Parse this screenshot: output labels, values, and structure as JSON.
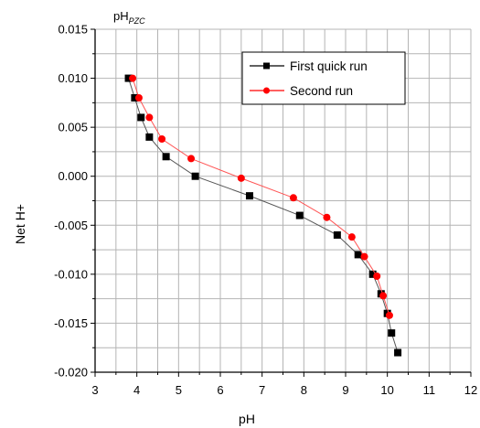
{
  "chart_data": {
    "type": "scatter",
    "xlabel": "pH",
    "ylabel": "Net H+",
    "xlim": [
      3,
      12
    ],
    "ylim": [
      -0.02,
      0.015
    ],
    "x_ticks": [
      "3",
      "4",
      "5",
      "6",
      "7",
      "8",
      "9",
      "10",
      "11",
      "12"
    ],
    "y_ticks": [
      "0.015",
      "0.010",
      "0.005",
      "0.000",
      "-0.005",
      "-0.010",
      "-0.015",
      "-0.020"
    ],
    "x_tick_values": [
      3,
      4,
      5,
      6,
      7,
      8,
      9,
      10,
      11,
      12
    ],
    "y_tick_values": [
      0.015,
      0.01,
      0.005,
      0.0,
      -0.005,
      -0.01,
      -0.015,
      -0.02
    ],
    "grid": true,
    "legend_position": "top-right",
    "annotation": {
      "main": "pH",
      "sub": "PZC"
    },
    "series": [
      {
        "name": "First quick run",
        "color": "#000000",
        "line_color": "#555555",
        "marker": "square",
        "x": [
          3.8,
          3.95,
          4.1,
          4.3,
          4.7,
          5.4,
          6.7,
          7.9,
          8.8,
          9.3,
          9.65,
          9.85,
          10.0,
          10.1,
          10.25
        ],
        "y": [
          0.01,
          0.008,
          0.006,
          0.004,
          0.002,
          0.0,
          -0.002,
          -0.004,
          -0.006,
          -0.008,
          -0.01,
          -0.012,
          -0.014,
          -0.016,
          -0.018
        ]
      },
      {
        "name": "Second run",
        "color": "#ff0000",
        "line_color": "#ff5555",
        "marker": "circle",
        "x": [
          3.9,
          4.05,
          4.3,
          4.6,
          5.3,
          6.5,
          7.75,
          8.55,
          9.15,
          9.45,
          9.75,
          9.9,
          10.05
        ],
        "y": [
          0.01,
          0.008,
          0.006,
          0.0038,
          0.0018,
          -0.0002,
          -0.0022,
          -0.0042,
          -0.0062,
          -0.0082,
          -0.0102,
          -0.0122,
          -0.0142
        ]
      }
    ]
  }
}
